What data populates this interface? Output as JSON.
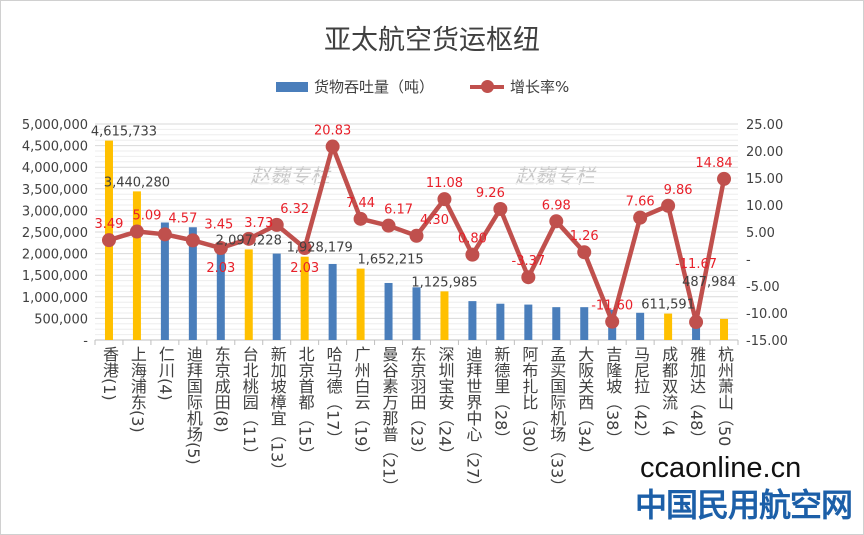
{
  "chart_data": {
    "type": "bar+line",
    "title": "亚太航空货运枢纽",
    "categories": [
      "香港(1)",
      "上海浦东(3)",
      "仁川(4)",
      "迪拜国际机场(5)",
      "东京成田(8)",
      "台北桃园（11）",
      "新加坡樟宜（13）",
      "北京首都（15）",
      "哈马德（17）",
      "广州白云（19）",
      "曼谷素万那普（21）",
      "东京羽田（23）",
      "深圳宝安（24）",
      "迪拜世界中心（27）",
      "新德里（28）",
      "阿布扎比（30）",
      "孟买国际机场（33）",
      "大阪关西（34）",
      "吉隆坡（38）",
      "马尼拉（42）",
      "成都双流（4",
      "雅加达（48）",
      "杭州萧山（50"
    ],
    "series": [
      {
        "name": "货物吞吐量（吨）",
        "axis": "left",
        "type": "bar",
        "values": [
          4615733,
          3440280,
          2720000,
          2610000,
          2240000,
          2097228,
          2000000,
          1928179,
          1760000,
          1652215,
          1320000,
          1220000,
          1125985,
          900000,
          840000,
          820000,
          760000,
          760000,
          700000,
          630000,
          611591,
          550000,
          487984
        ],
        "labeled": [
          true,
          true,
          false,
          false,
          false,
          true,
          false,
          true,
          false,
          true,
          false,
          false,
          true,
          false,
          false,
          false,
          false,
          false,
          false,
          false,
          true,
          false,
          true
        ],
        "highlight": [
          true,
          true,
          false,
          false,
          false,
          true,
          false,
          true,
          false,
          true,
          false,
          false,
          true,
          false,
          false,
          false,
          false,
          false,
          false,
          false,
          true,
          false,
          true
        ]
      },
      {
        "name": "增长率%",
        "axis": "right",
        "type": "line",
        "values": [
          3.49,
          5.09,
          4.57,
          3.45,
          2.03,
          3.73,
          6.32,
          2.03,
          20.83,
          7.44,
          6.17,
          4.3,
          11.08,
          0.8,
          9.26,
          -3.37,
          6.98,
          1.26,
          -11.6,
          7.66,
          9.86,
          -11.67,
          14.84
        ],
        "labels": [
          "3.49",
          "5.09",
          "4.57",
          "3.45",
          "2.03",
          "3.73",
          "6.32",
          "2.03",
          "20.83",
          "7.44",
          "6.17",
          "4.30",
          "11.08",
          "0.80",
          "9.26",
          "-3.37",
          "6.98",
          "1.26",
          "-11.60",
          "7.66",
          "9.86",
          "-11.67",
          "14.84"
        ]
      }
    ],
    "y_left": {
      "range": [
        0,
        5000000
      ],
      "ticks": [
        "-",
        "500,000",
        "1,000,000",
        "1,500,000",
        "2,000,000",
        "2,500,000",
        "3,000,000",
        "3,500,000",
        "4,000,000",
        "4,500,000",
        "5,000,000"
      ]
    },
    "y_right": {
      "range": [
        -15,
        25
      ],
      "ticks": [
        "-15.00",
        "-10.00",
        "-5.00",
        "-",
        "5.00",
        "10.00",
        "15.00",
        "20.00",
        "25.00"
      ]
    },
    "legend": "top",
    "grid": true,
    "colors": {
      "bar": "#4a7ebb",
      "bar_highlight": "#ffc000",
      "line": "#c0504d",
      "label_red": "#e8202a",
      "text": "#404040"
    }
  },
  "watermark": "赵巍专栏",
  "logo": {
    "line1": "ccaonline.cn",
    "line2": "中国民用航空网"
  }
}
